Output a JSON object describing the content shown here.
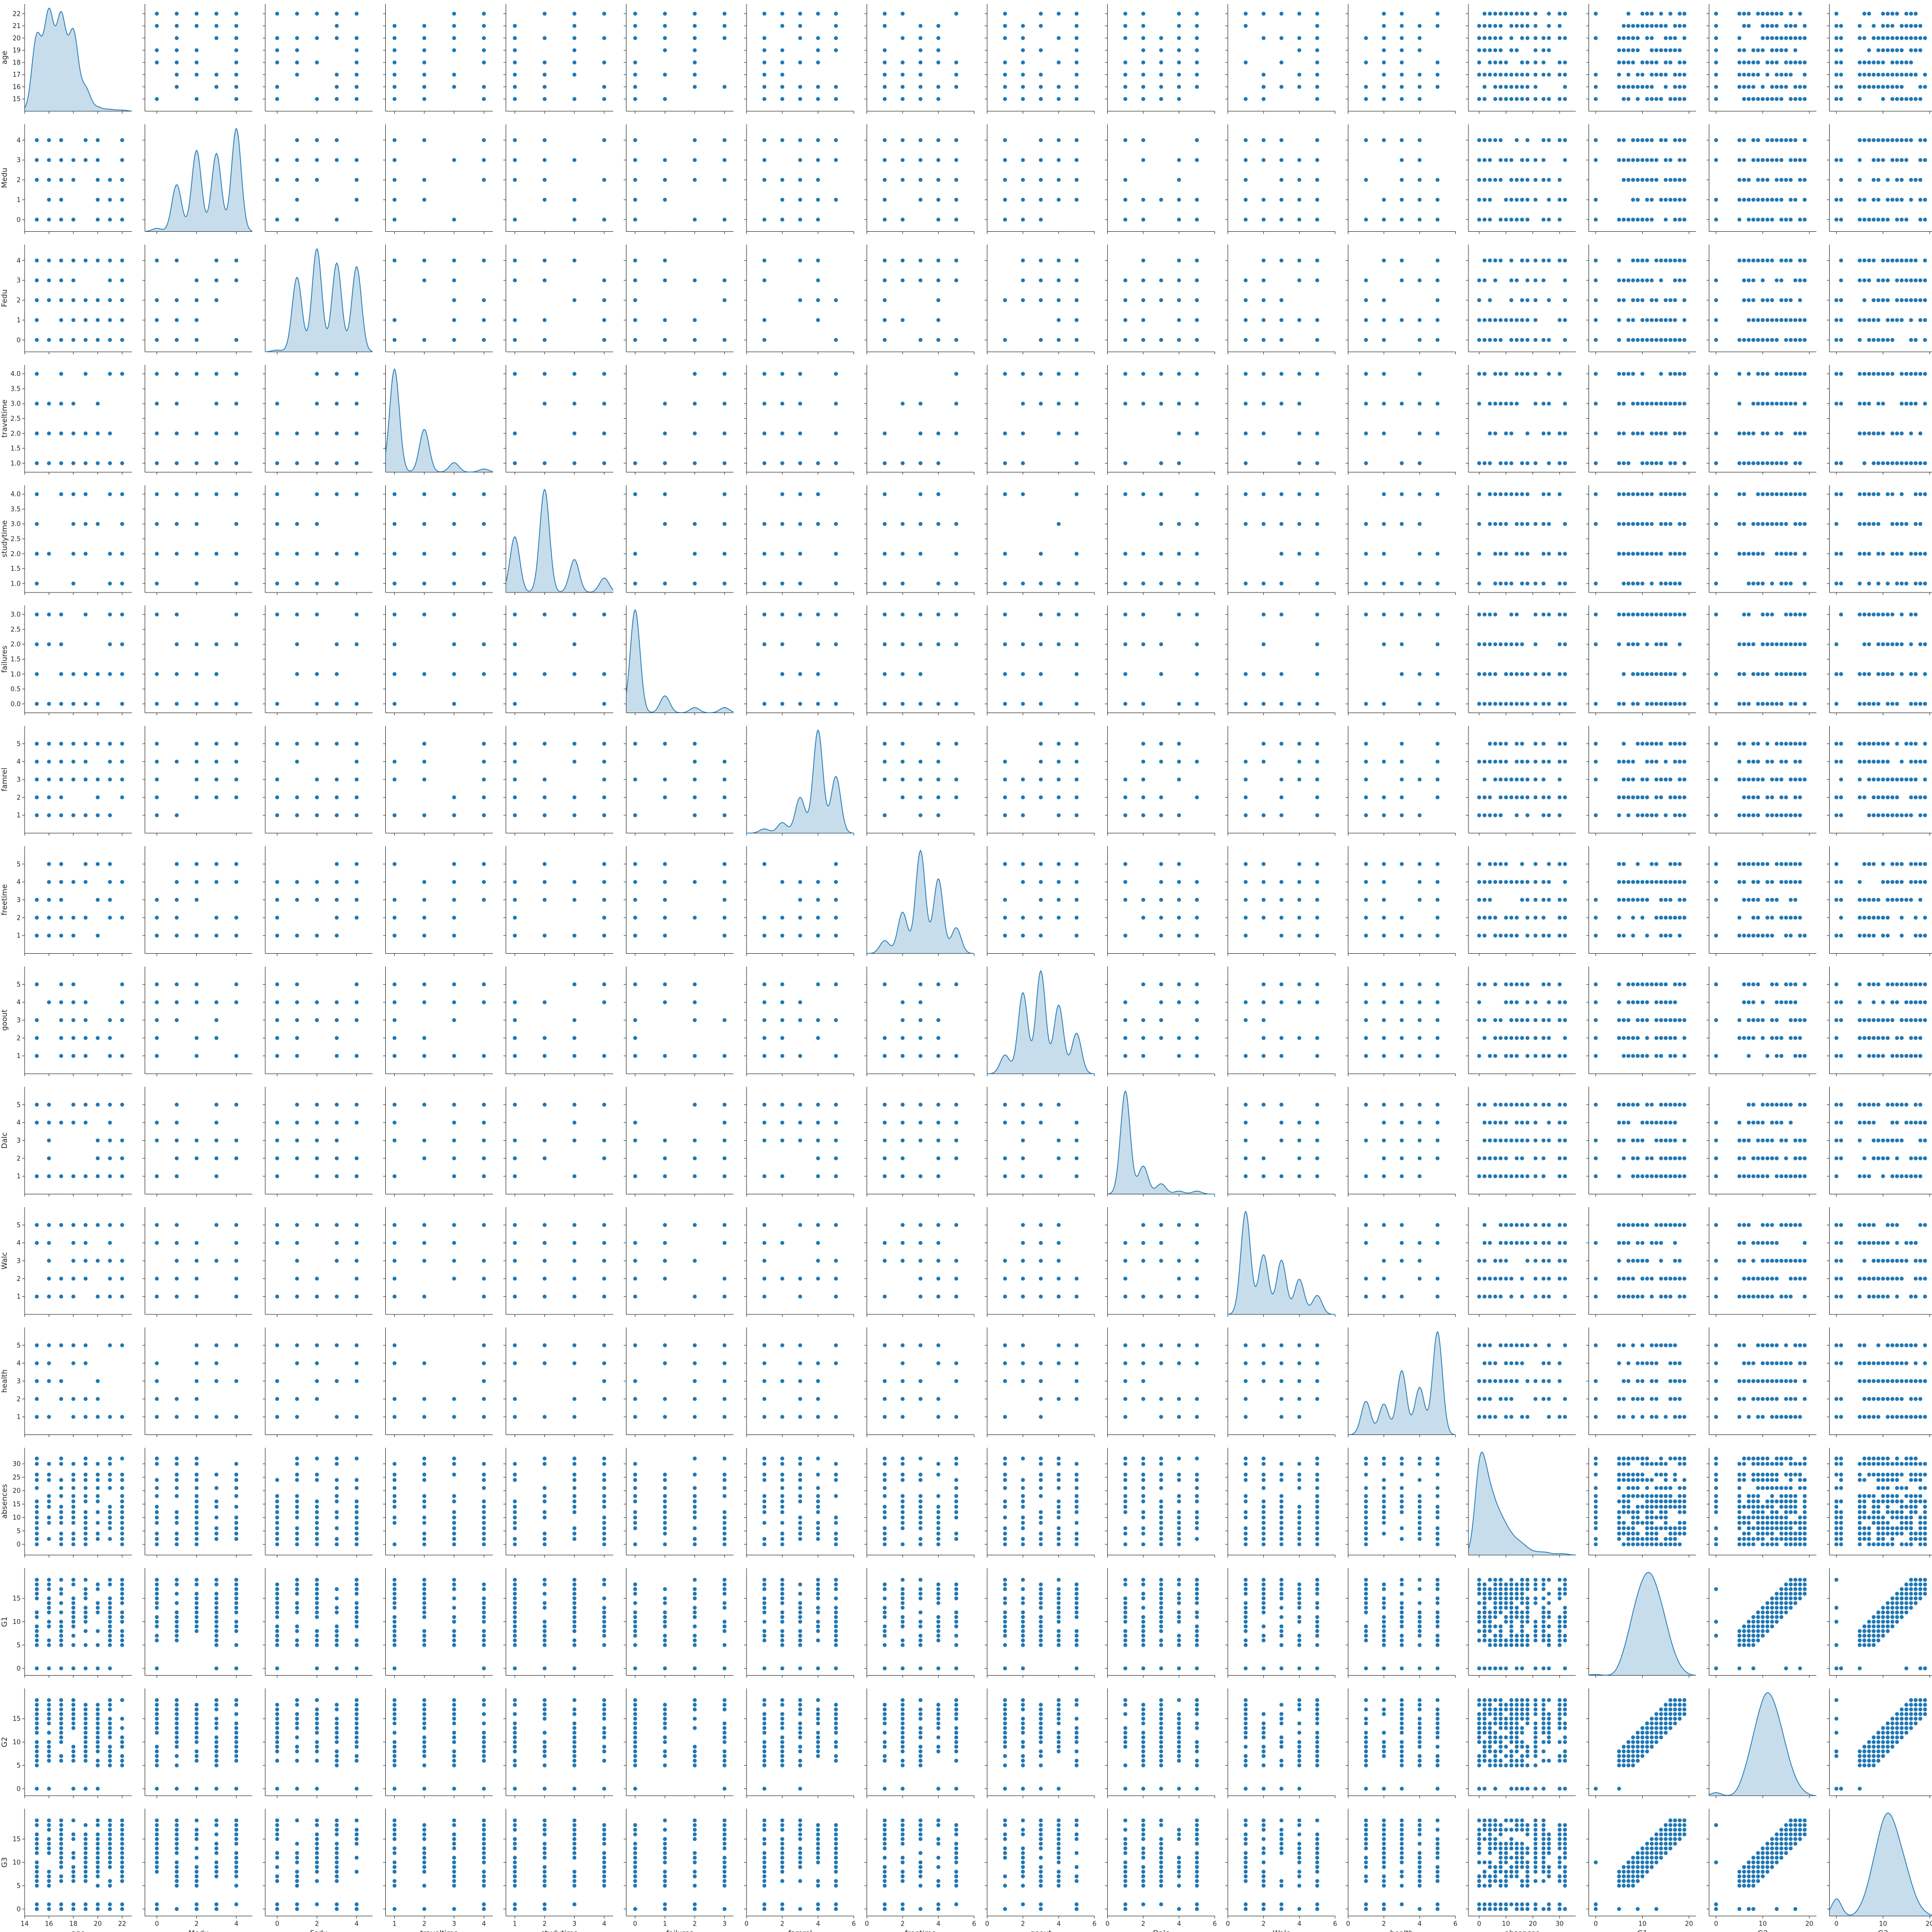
{
  "colors": {
    "marker": "#1f77b4",
    "kde_fill": "#1f77b4",
    "axis": "#262626"
  },
  "chart_data": {
    "type": "scatter",
    "subtype": "pairplot",
    "diag_kind": "kde",
    "grid": false,
    "variables": [
      {
        "name": "age",
        "range": [
          14,
          22.8
        ],
        "xticks": [
          14,
          16,
          18,
          20,
          22
        ],
        "yticks": [
          15,
          16,
          17,
          18,
          19,
          20,
          21,
          22
        ],
        "levels": [
          15,
          16,
          17,
          18,
          19,
          20,
          21,
          22
        ],
        "kde_weights": [
          0.2,
          0.26,
          0.25,
          0.21,
          0.06,
          0.01,
          0.005,
          0.003
        ]
      },
      {
        "name": "Medu",
        "range": [
          -0.6,
          4.8
        ],
        "xticks": [
          0,
          2,
          4
        ],
        "yticks": [
          0,
          1,
          2,
          3,
          4
        ],
        "levels": [
          0,
          1,
          2,
          3,
          4
        ],
        "kde_weights": [
          0.01,
          0.15,
          0.26,
          0.25,
          0.33
        ]
      },
      {
        "name": "Fedu",
        "range": [
          -0.6,
          4.8
        ],
        "xticks": [
          0,
          2,
          4
        ],
        "yticks": [
          0,
          1,
          2,
          3,
          4
        ],
        "levels": [
          0,
          1,
          2,
          3,
          4
        ],
        "kde_weights": [
          0.005,
          0.21,
          0.29,
          0.25,
          0.24
        ]
      },
      {
        "name": "traveltime",
        "range": [
          0.7,
          4.3
        ],
        "xticks": [
          1,
          2,
          3,
          4
        ],
        "yticks": [
          1.0,
          1.5,
          2.0,
          2.5,
          3.0,
          3.5,
          4.0
        ],
        "levels": [
          1,
          2,
          3,
          4
        ],
        "kde_weights": [
          0.65,
          0.27,
          0.06,
          0.02
        ]
      },
      {
        "name": "studytime",
        "range": [
          0.7,
          4.3
        ],
        "xticks": [
          1,
          2,
          3,
          4
        ],
        "yticks": [
          1.0,
          1.5,
          2.0,
          2.5,
          3.0,
          3.5,
          4.0
        ],
        "levels": [
          1,
          2,
          3,
          4
        ],
        "kde_weights": [
          0.27,
          0.5,
          0.16,
          0.07
        ]
      },
      {
        "name": "failures",
        "range": [
          -0.3,
          3.3
        ],
        "xticks": [
          0,
          1,
          2,
          3
        ],
        "yticks": [
          0.0,
          0.5,
          1.0,
          1.5,
          2.0,
          2.5,
          3.0
        ],
        "levels": [
          0,
          1,
          2,
          3
        ],
        "kde_weights": [
          0.79,
          0.13,
          0.04,
          0.04
        ]
      },
      {
        "name": "famrel",
        "range": [
          0,
          6
        ],
        "xticks": [
          0,
          2,
          4,
          6
        ],
        "yticks": [
          1,
          2,
          3,
          4,
          5
        ],
        "levels": [
          1,
          2,
          3,
          4,
          5
        ],
        "kde_weights": [
          0.02,
          0.05,
          0.17,
          0.49,
          0.27
        ]
      },
      {
        "name": "freetime",
        "range": [
          0,
          6
        ],
        "xticks": [
          0,
          2,
          4,
          6
        ],
        "yticks": [
          1,
          2,
          3,
          4,
          5
        ],
        "levels": [
          1,
          2,
          3,
          4,
          5
        ],
        "kde_weights": [
          0.05,
          0.16,
          0.4,
          0.29,
          0.1
        ]
      },
      {
        "name": "goout",
        "range": [
          0,
          6
        ],
        "xticks": [
          0,
          2,
          4,
          6
        ],
        "yticks": [
          1,
          2,
          3,
          4,
          5
        ],
        "levels": [
          1,
          2,
          3,
          4,
          5
        ],
        "kde_weights": [
          0.06,
          0.26,
          0.33,
          0.22,
          0.13
        ]
      },
      {
        "name": "Dalc",
        "range": [
          0,
          6
        ],
        "xticks": [
          0,
          2,
          4,
          6
        ],
        "yticks": [
          1,
          2,
          3,
          4,
          5
        ],
        "levels": [
          1,
          2,
          3,
          4,
          5
        ],
        "kde_weights": [
          0.7,
          0.19,
          0.07,
          0.02,
          0.02
        ]
      },
      {
        "name": "Walc",
        "range": [
          0,
          6
        ],
        "xticks": [
          0,
          2,
          4,
          6
        ],
        "yticks": [
          1,
          2,
          3,
          4,
          5
        ],
        "levels": [
          1,
          2,
          3,
          4,
          5
        ],
        "kde_weights": [
          0.38,
          0.22,
          0.2,
          0.13,
          0.07
        ]
      },
      {
        "name": "health",
        "range": [
          0,
          6
        ],
        "xticks": [
          0,
          2,
          4,
          6
        ],
        "yticks": [
          1,
          2,
          3,
          4,
          5
        ],
        "levels": [
          1,
          2,
          3,
          4,
          5
        ],
        "kde_weights": [
          0.12,
          0.11,
          0.23,
          0.17,
          0.37
        ]
      },
      {
        "name": "absences",
        "range": [
          -4,
          36
        ],
        "xticks": [
          0,
          10,
          20,
          30
        ],
        "yticks": [
          0,
          5,
          10,
          15,
          20,
          25,
          30
        ],
        "levels": [
          0,
          2,
          4,
          6,
          8,
          10,
          12,
          14,
          16,
          18,
          21,
          24,
          26,
          30,
          32
        ],
        "kde_weights": [
          0.3,
          0.17,
          0.14,
          0.1,
          0.08,
          0.06,
          0.04,
          0.03,
          0.025,
          0.015,
          0.01,
          0.008,
          0.005,
          0.004,
          0.003
        ]
      },
      {
        "name": "G1",
        "range": [
          -1.5,
          21.5
        ],
        "xticks": [
          0,
          10,
          20
        ],
        "yticks": [
          0,
          5,
          10,
          15
        ],
        "levels": [
          0,
          5,
          6,
          7,
          8,
          9,
          10,
          11,
          12,
          13,
          14,
          15,
          16,
          17,
          18,
          19
        ],
        "kde_weights": [
          0.003,
          0.01,
          0.03,
          0.05,
          0.08,
          0.1,
          0.12,
          0.13,
          0.13,
          0.11,
          0.09,
          0.07,
          0.04,
          0.025,
          0.01,
          0.005
        ]
      },
      {
        "name": "G2",
        "range": [
          -1.5,
          21.5
        ],
        "xticks": [
          0,
          10,
          20
        ],
        "yticks": [
          0,
          5,
          10,
          15
        ],
        "levels": [
          0,
          5,
          6,
          7,
          8,
          9,
          10,
          11,
          12,
          13,
          14,
          15,
          16,
          17,
          18,
          19
        ],
        "kde_weights": [
          0.01,
          0.01,
          0.03,
          0.05,
          0.08,
          0.1,
          0.13,
          0.14,
          0.13,
          0.11,
          0.09,
          0.06,
          0.04,
          0.02,
          0.01,
          0.005
        ]
      },
      {
        "name": "G3",
        "range": [
          -1.5,
          21.5
        ],
        "xticks": [
          0,
          10,
          20
        ],
        "yticks": [
          0,
          5,
          10,
          15
        ],
        "levels": [
          0,
          1,
          5,
          6,
          7,
          8,
          9,
          10,
          11,
          12,
          13,
          14,
          15,
          16,
          17,
          18,
          19
        ],
        "kde_weights": [
          0.05,
          0.003,
          0.01,
          0.02,
          0.04,
          0.07,
          0.09,
          0.12,
          0.13,
          0.12,
          0.1,
          0.08,
          0.06,
          0.04,
          0.02,
          0.01,
          0.005
        ]
      }
    ]
  }
}
